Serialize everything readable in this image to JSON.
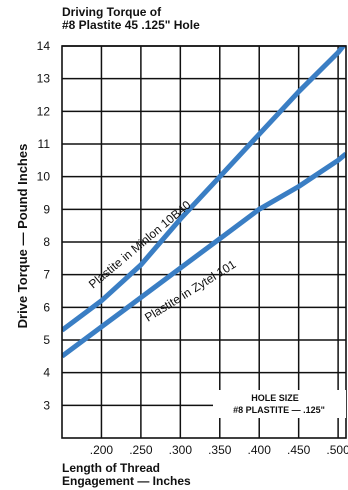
{
  "chart_data": {
    "type": "line",
    "title_line1": "Driving Torque of",
    "title_line2": "#8 Plastite 45 .125\" Hole",
    "xlabel_line1": "Length of Thread",
    "xlabel_line2": "Engagement — Inches",
    "ylabel": "Drive Torque — Pound Inches",
    "xlim": [
      0.15,
      0.51
    ],
    "ylim": [
      2.0,
      14.0
    ],
    "x_ticks": [
      ".200",
      ".250",
      ".300",
      ".350",
      ".400",
      ".450",
      ".500"
    ],
    "x_tick_values": [
      0.2,
      0.25,
      0.3,
      0.35,
      0.4,
      0.45,
      0.5
    ],
    "y_ticks": [
      3,
      4,
      5,
      6,
      7,
      8,
      9,
      10,
      11,
      12,
      13,
      14
    ],
    "grid": true,
    "line_color": "#3a7ec4",
    "series": [
      {
        "name": "Plastite in Minlon 10B40",
        "x": [
          0.15,
          0.2,
          0.25,
          0.3,
          0.35,
          0.4,
          0.45,
          0.5,
          0.51
        ],
        "y": [
          5.3,
          6.2,
          7.3,
          8.7,
          10.0,
          11.3,
          12.6,
          13.8,
          14.1
        ]
      },
      {
        "name": "Plastite in Zytel 101",
        "x": [
          0.15,
          0.2,
          0.25,
          0.3,
          0.35,
          0.4,
          0.45,
          0.5,
          0.51
        ],
        "y": [
          4.5,
          5.4,
          6.3,
          7.2,
          8.1,
          9.0,
          9.7,
          10.5,
          10.7
        ]
      }
    ],
    "annotation_line1": "HOLE SIZE",
    "annotation_line2": "#8 PLASTITE — .125\""
  }
}
